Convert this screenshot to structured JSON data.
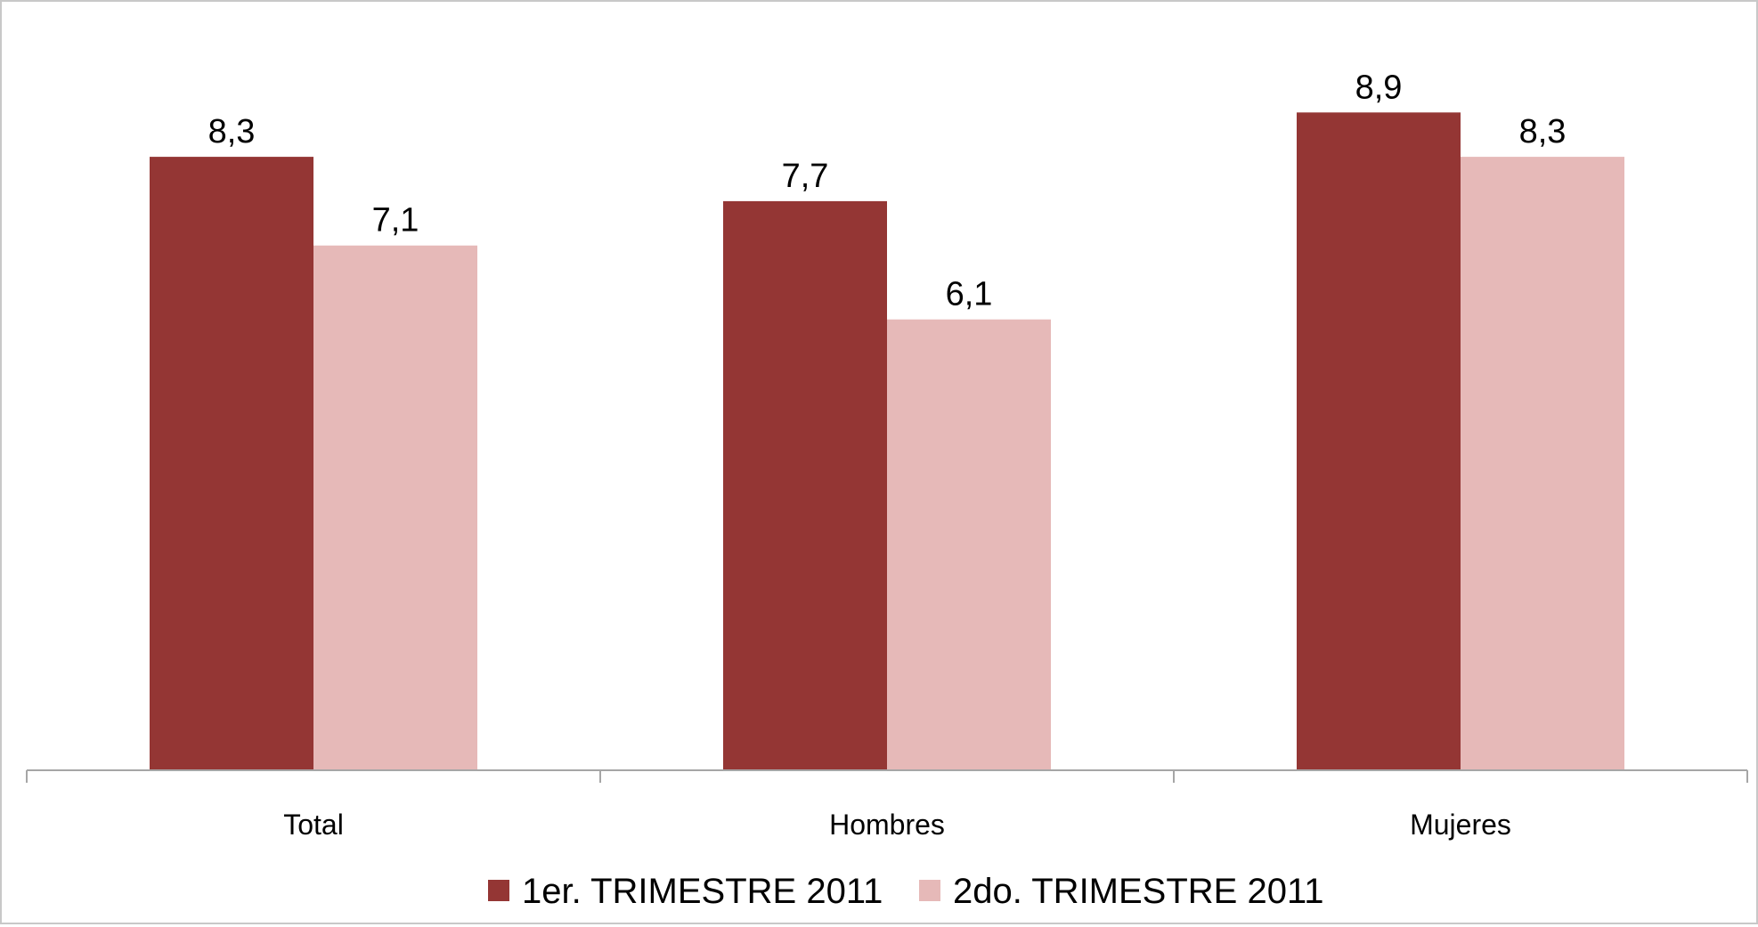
{
  "chart_data": {
    "type": "bar",
    "categories": [
      "Total",
      "Hombres",
      "Mujeres"
    ],
    "series": [
      {
        "name": "1er. TRIMESTRE 2011",
        "values": [
          8.3,
          7.7,
          8.9
        ],
        "labels": [
          "8,3",
          "7,7",
          "8,9"
        ],
        "color": "#943634"
      },
      {
        "name": "2do. TRIMESTRE 2011",
        "values": [
          7.1,
          6.1,
          8.3
        ],
        "labels": [
          "7,1",
          "6,1",
          "8,3"
        ],
        "color": "#e6b9b8"
      }
    ],
    "title": "",
    "xlabel": "",
    "ylabel": "",
    "ylim": [
      0,
      10.4
    ],
    "grid": false,
    "legend_position": "bottom",
    "axis_color": "#a6a6a6"
  }
}
